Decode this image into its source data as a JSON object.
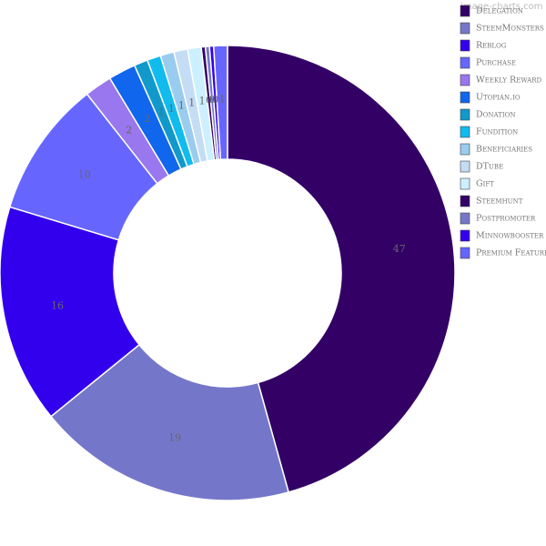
{
  "watermark": "image-charts.com",
  "chart_data": {
    "type": "pie",
    "donut": true,
    "legend_position": "top-right",
    "categories": [
      "Delegation",
      "SteemMonsters",
      "Reblog",
      "Purchase",
      "Weekly Reward",
      "Utopian.io",
      "Donation",
      "Fundition",
      "Beneficiaries",
      "DTube",
      "Gift",
      "Steemhunt",
      "Postpromoter",
      "Minnowbooster",
      "Premium Feature"
    ],
    "values": [
      47,
      19,
      16,
      10,
      2,
      2,
      1,
      1,
      1,
      1,
      1,
      0.3,
      0.3,
      0.3,
      1
    ],
    "labels": [
      "47",
      "19",
      "16",
      "10",
      "2",
      "2",
      "1",
      "1",
      "1",
      "1",
      "1",
      "0",
      "0",
      "0",
      "1"
    ],
    "colors": [
      "#330066",
      "#7477c9",
      "#3300ee",
      "#6666ff",
      "#9977ee",
      "#1166ee",
      "#1199cc",
      "#11bbee",
      "#99ccee",
      "#c5dcf5",
      "#ccf0ff",
      "#330066",
      "#7477c9",
      "#3300ee",
      "#6666ff"
    ]
  }
}
